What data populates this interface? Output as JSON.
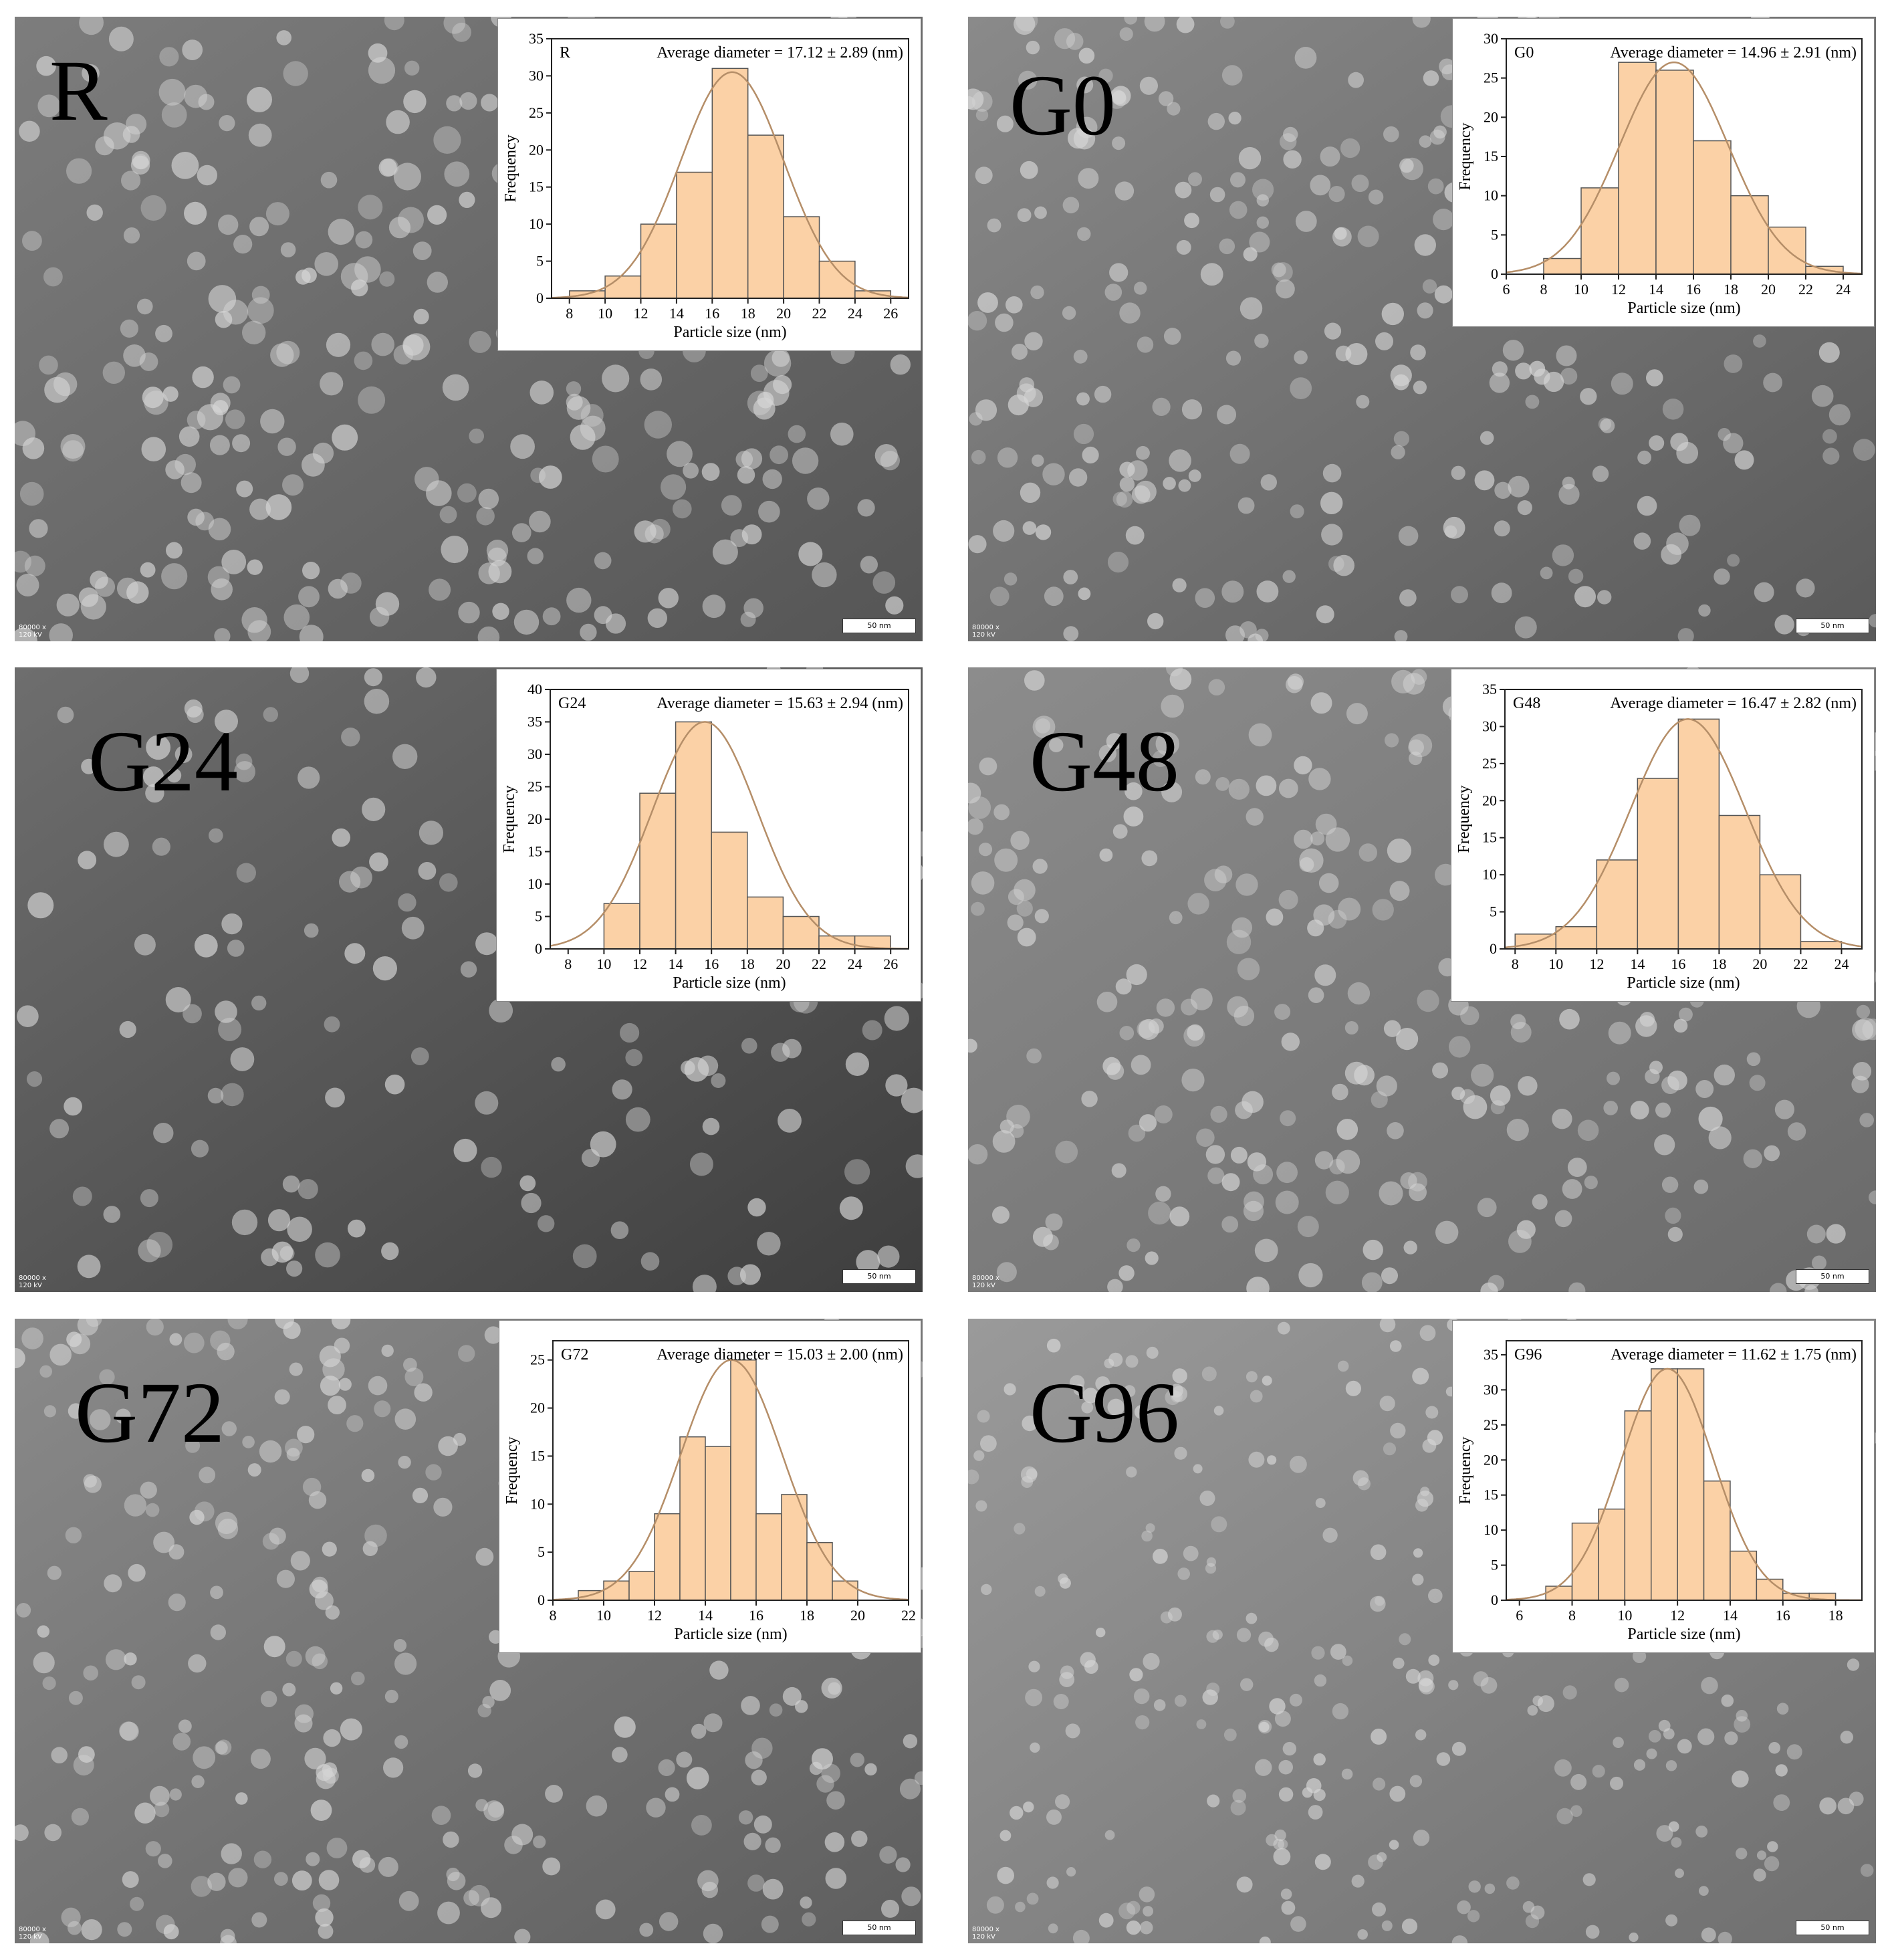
{
  "colors": {
    "bar_fill": "#fbd1a6",
    "bar_edge": "#555555",
    "curve": "#b58e68",
    "axis": "#222222"
  },
  "panels": [
    {
      "label": "R",
      "magnification": "80000 x",
      "voltage": "120 kV",
      "scale": "50 nm"
    },
    {
      "label": "G0",
      "magnification": "80000 x",
      "voltage": "120 kV",
      "scale": "50 nm"
    },
    {
      "label": "G24",
      "magnification": "80000 x",
      "voltage": "120 kV",
      "scale": "50 nm"
    },
    {
      "label": "G48",
      "magnification": "80000 x",
      "voltage": "120 kV",
      "scale": "50 nm"
    },
    {
      "label": "G72",
      "magnification": "80000 x",
      "voltage": "120 kV",
      "scale": "50 nm"
    },
    {
      "label": "G96",
      "magnification": "80000 x",
      "voltage": "120 kV",
      "scale": "50 nm"
    }
  ],
  "chart_data": [
    {
      "type": "bar",
      "title_tag": "R",
      "title": "Average diameter = 17.12 ± 2.89 (nm)",
      "xlabel": "Particle size (nm)",
      "ylabel": "Frequency",
      "xlim": [
        7,
        27
      ],
      "ylim": [
        0,
        35
      ],
      "xticks": [
        8,
        10,
        12,
        14,
        16,
        18,
        20,
        22,
        24,
        26
      ],
      "yticks": [
        0,
        5,
        10,
        15,
        20,
        25,
        30,
        35
      ],
      "bin_width": 2,
      "bin_starts": [
        8,
        10,
        12,
        14,
        16,
        18,
        20,
        22,
        24
      ],
      "values": [
        1,
        3,
        10,
        17,
        31,
        22,
        11,
        5,
        1
      ],
      "fit": {
        "mean": 17.12,
        "sd": 2.89,
        "peak": 30.5
      }
    },
    {
      "type": "bar",
      "title_tag": "G0",
      "title": "Average diameter = 14.96 ± 2.91 (nm)",
      "xlabel": "Particle size (nm)",
      "ylabel": "Frequency",
      "xlim": [
        6,
        25
      ],
      "ylim": [
        0,
        30
      ],
      "xticks": [
        6,
        8,
        10,
        12,
        14,
        16,
        18,
        20,
        22,
        24
      ],
      "yticks": [
        0,
        5,
        10,
        15,
        20,
        25,
        30
      ],
      "bin_width": 2,
      "bin_starts": [
        8,
        10,
        12,
        14,
        16,
        18,
        20,
        22
      ],
      "values": [
        2,
        11,
        27,
        26,
        17,
        10,
        6,
        1
      ],
      "fit": {
        "mean": 14.96,
        "sd": 2.91,
        "peak": 27
      }
    },
    {
      "type": "bar",
      "title_tag": "G24",
      "title": "Average diameter = 15.63 ± 2.94 (nm)",
      "xlabel": "Particle size (nm)",
      "ylabel": "Frequency",
      "xlim": [
        7,
        27
      ],
      "ylim": [
        0,
        40
      ],
      "xticks": [
        8,
        10,
        12,
        14,
        16,
        18,
        20,
        22,
        24,
        26
      ],
      "yticks": [
        0,
        5,
        10,
        15,
        20,
        25,
        30,
        35,
        40
      ],
      "bin_width": 2,
      "bin_starts": [
        10,
        12,
        14,
        16,
        18,
        20,
        22,
        24
      ],
      "values": [
        7,
        24,
        35,
        18,
        8,
        5,
        2,
        2
      ],
      "fit": {
        "mean": 15.63,
        "sd": 2.94,
        "peak": 35
      }
    },
    {
      "type": "bar",
      "title_tag": "G48",
      "title": "Average diameter = 16.47 ± 2.82 (nm)",
      "xlabel": "Particle size (nm)",
      "ylabel": "Frequency",
      "xlim": [
        7.5,
        25
      ],
      "ylim": [
        0,
        35
      ],
      "xticks": [
        8,
        10,
        12,
        14,
        16,
        18,
        20,
        22,
        24
      ],
      "yticks": [
        0,
        5,
        10,
        15,
        20,
        25,
        30,
        35
      ],
      "bin_width": 2,
      "bin_starts": [
        8,
        10,
        12,
        14,
        16,
        18,
        20,
        22
      ],
      "values": [
        2,
        3,
        12,
        23,
        31,
        18,
        10,
        1
      ],
      "fit": {
        "mean": 16.47,
        "sd": 2.82,
        "peak": 31
      }
    },
    {
      "type": "bar",
      "title_tag": "G72",
      "title": "Average diameter = 15.03 ± 2.00 (nm)",
      "xlabel": "Particle size (nm)",
      "ylabel": "Frequency",
      "xlim": [
        8,
        22
      ],
      "ylim": [
        0,
        27
      ],
      "xticks": [
        8,
        10,
        12,
        14,
        16,
        18,
        20,
        22
      ],
      "yticks": [
        0,
        5,
        10,
        15,
        20,
        25
      ],
      "bin_width": 1,
      "bin_starts": [
        9,
        10,
        11,
        12,
        13,
        14,
        15,
        16,
        17,
        18,
        19
      ],
      "values": [
        1,
        2,
        3,
        9,
        17,
        16,
        25,
        9,
        11,
        6,
        2
      ],
      "fit": {
        "mean": 15.03,
        "sd": 2.0,
        "peak": 25
      }
    },
    {
      "type": "bar",
      "title_tag": "G96",
      "title": "Average diameter = 11.62 ± 1.75 (nm)",
      "xlabel": "Particle size (nm)",
      "ylabel": "Frequency",
      "xlim": [
        5.5,
        19
      ],
      "ylim": [
        0,
        37
      ],
      "xticks": [
        6,
        8,
        10,
        12,
        14,
        16,
        18
      ],
      "yticks": [
        0,
        5,
        10,
        15,
        20,
        25,
        30,
        35
      ],
      "bin_width": 1,
      "bin_starts": [
        7,
        8,
        9,
        10,
        11,
        12,
        13,
        14,
        15,
        16,
        17
      ],
      "values": [
        2,
        11,
        13,
        27,
        33,
        33,
        17,
        7,
        3,
        1,
        1
      ],
      "fit": {
        "mean": 11.62,
        "sd": 1.75,
        "peak": 33
      }
    }
  ]
}
